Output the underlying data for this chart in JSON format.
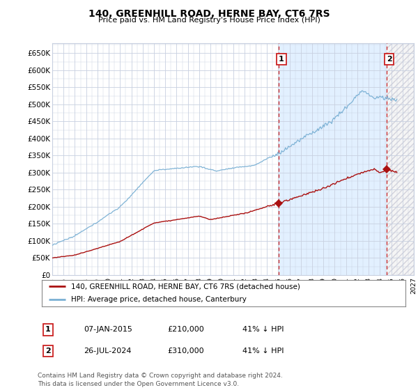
{
  "title": "140, GREENHILL ROAD, HERNE BAY, CT6 7RS",
  "subtitle": "Price paid vs. HM Land Registry's House Price Index (HPI)",
  "ylabel_ticks": [
    "£0",
    "£50K",
    "£100K",
    "£150K",
    "£200K",
    "£250K",
    "£300K",
    "£350K",
    "£400K",
    "£450K",
    "£500K",
    "£550K",
    "£600K",
    "£650K"
  ],
  "ytick_values": [
    0,
    50000,
    100000,
    150000,
    200000,
    250000,
    300000,
    350000,
    400000,
    450000,
    500000,
    550000,
    600000,
    650000
  ],
  "ylim": [
    0,
    680000
  ],
  "xlim_start": 1995.0,
  "xlim_end": 2027.0,
  "hpi_color": "#7ab0d4",
  "price_color": "#aa1111",
  "bg_color": "#ffffff",
  "plot_bg": "#ffffff",
  "grid_color": "#c8d0e0",
  "transaction1_x": 2015.03,
  "transaction1_y": 210000,
  "transaction2_x": 2024.58,
  "transaction2_y": 310000,
  "legend_house_label": "140, GREENHILL ROAD, HERNE BAY, CT6 7RS (detached house)",
  "legend_hpi_label": "HPI: Average price, detached house, Canterbury",
  "table_row1": [
    "1",
    "07-JAN-2015",
    "£210,000",
    "41% ↓ HPI"
  ],
  "table_row2": [
    "2",
    "26-JUL-2024",
    "£310,000",
    "41% ↓ HPI"
  ],
  "footnote": "Contains HM Land Registry data © Crown copyright and database right 2024.\nThis data is licensed under the Open Government Licence v3.0.",
  "hatch_start": 2024.58,
  "blue_fill_start": 2015.03,
  "blue_fill_color": "#ddeeff",
  "dashed_line1_x": 2015.03,
  "dashed_line2_x": 2024.58
}
